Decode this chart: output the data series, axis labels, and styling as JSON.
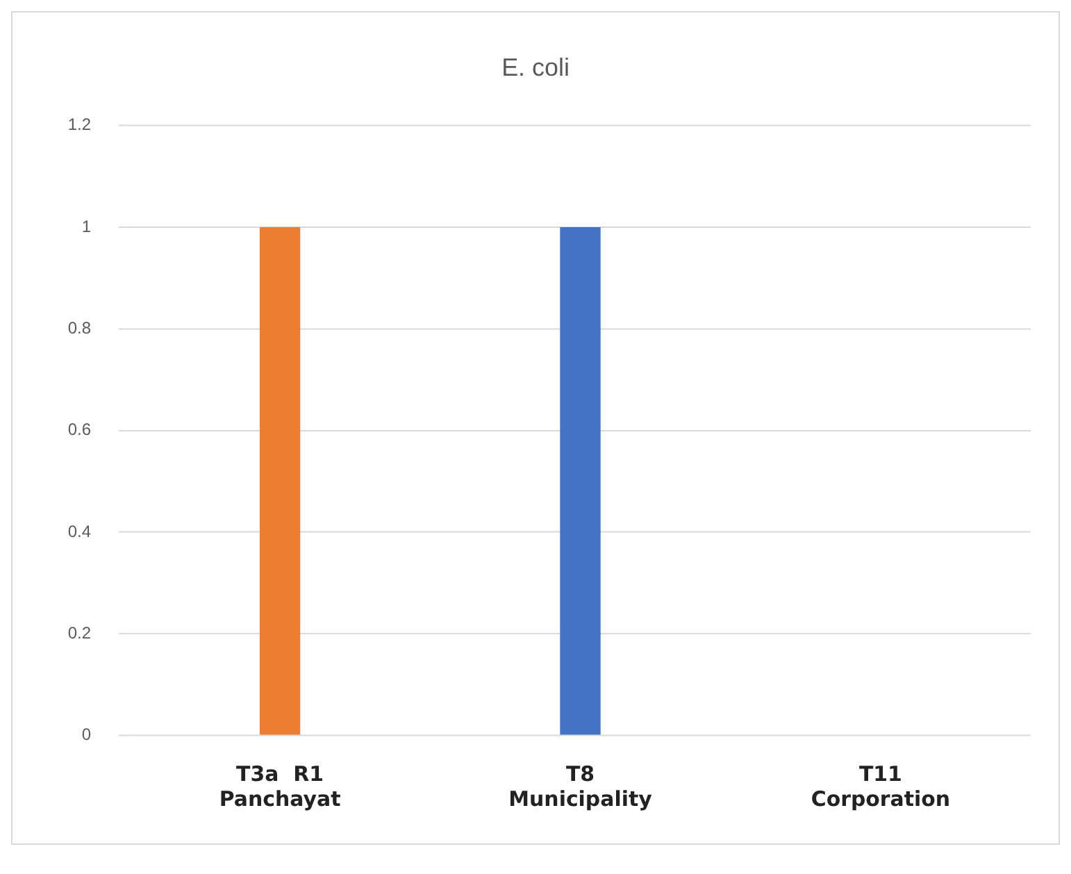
{
  "chart_data": {
    "type": "bar",
    "title": "E. coli",
    "categories": [
      "T3a  R1\nPanchayat",
      "T8\nMunicipality",
      "T11\nCorporation"
    ],
    "values": [
      1,
      1,
      0
    ],
    "colors": [
      "#ed7d31",
      "#4472c4",
      "#4472c4"
    ],
    "ylim": [
      0,
      1.2
    ],
    "yticks": [
      0,
      0.2,
      0.4,
      0.6,
      0.8,
      1,
      1.2
    ],
    "grid": "y",
    "legend": false
  }
}
